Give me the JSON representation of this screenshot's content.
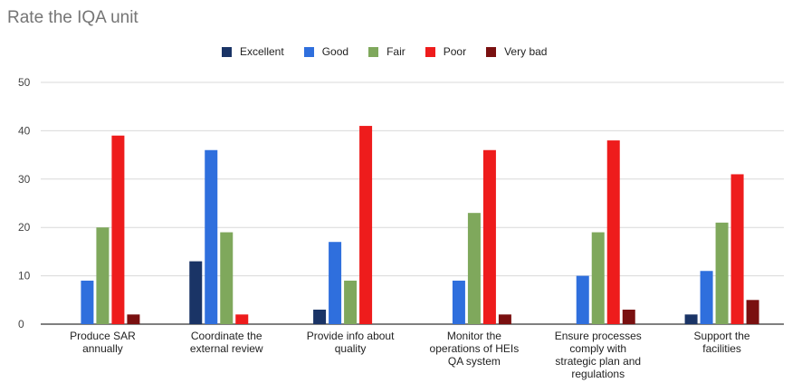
{
  "chart_data": {
    "type": "bar",
    "title": "Rate the IQA unit",
    "categories": [
      [
        "Produce SAR",
        "annually"
      ],
      [
        "Coordinate the",
        "external review"
      ],
      [
        "Provide info about",
        "quality"
      ],
      [
        "Monitor the",
        "operations of HEIs",
        "QA system"
      ],
      [
        "Ensure processes",
        "comply with",
        "strategic plan and",
        "regulations"
      ],
      [
        "Support the",
        "facilities"
      ]
    ],
    "series": [
      {
        "name": "Excellent",
        "color": "#1a3466",
        "values": [
          0,
          13,
          3,
          0,
          0,
          2
        ]
      },
      {
        "name": "Good",
        "color": "#2f6fdd",
        "values": [
          9,
          36,
          17,
          9,
          10,
          11
        ]
      },
      {
        "name": "Fair",
        "color": "#7fa85c",
        "values": [
          20,
          19,
          9,
          23,
          19,
          21
        ]
      },
      {
        "name": "Poor",
        "color": "#ee1c1c",
        "values": [
          39,
          2,
          41,
          36,
          38,
          31
        ]
      },
      {
        "name": "Very bad",
        "color": "#7a1010",
        "values": [
          2,
          0,
          0,
          2,
          3,
          5
        ]
      }
    ],
    "ylim": [
      0,
      50
    ],
    "yticks": [
      0,
      10,
      20,
      30,
      40,
      50
    ],
    "grid": true,
    "legend_position": "top"
  }
}
